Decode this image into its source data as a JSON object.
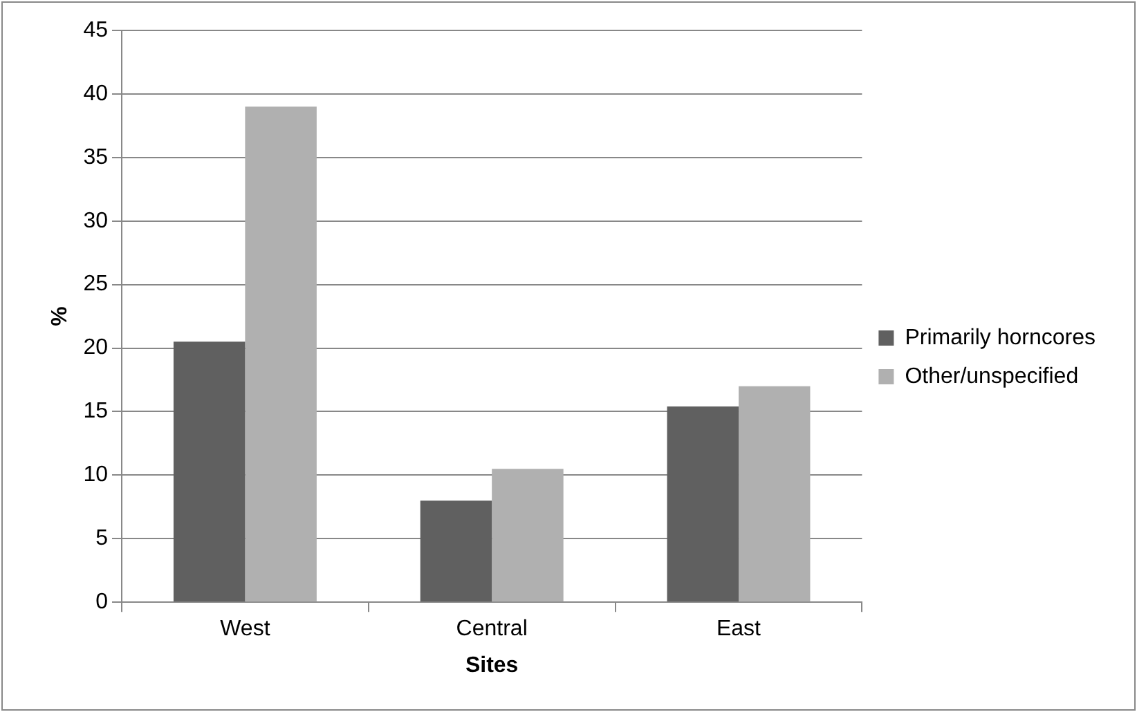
{
  "chart_data": {
    "type": "bar",
    "xlabel": "Sites",
    "ylabel": "%",
    "categories": [
      "West",
      "Central",
      "East"
    ],
    "series": [
      {
        "name": "Primarily horncores",
        "color": "#606060",
        "values": [
          20.5,
          8,
          15.4
        ]
      },
      {
        "name": "Other/unspecified",
        "color": "#b0b0b0",
        "values": [
          39,
          10.5,
          17
        ]
      }
    ],
    "ylim": [
      0,
      45
    ],
    "yticks": [
      0,
      5,
      10,
      15,
      20,
      25,
      30,
      35,
      40,
      45
    ],
    "grid": "y",
    "legend": "right"
  }
}
